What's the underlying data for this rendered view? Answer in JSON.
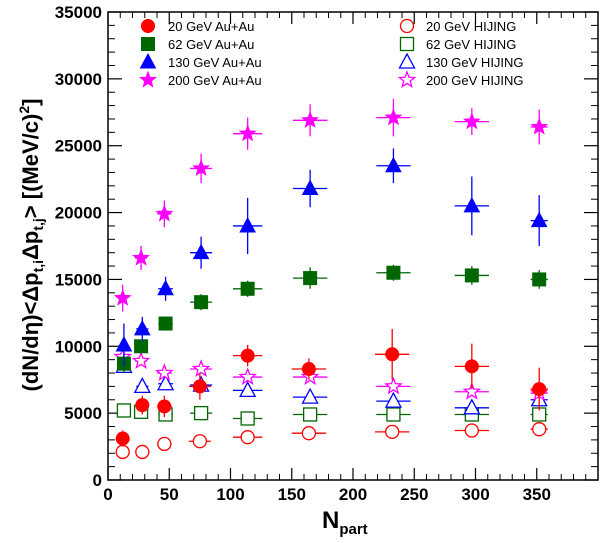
{
  "chart_data": {
    "type": "scatter",
    "title": "",
    "xlabel": "N",
    "xlabel_sub": "part",
    "ylabel": "(dN/dη)<Δpₜ,ᵢΔpₜ,ⱼ> [(MeV/c)²]",
    "ylabel_parts": {
      "main": "(dN/dη)<Δp",
      "sub1": "t,i",
      "mid": "Δp",
      "sub2": "t,j",
      "end": "> [(MeV/c)",
      "sup": "2",
      "close": "]"
    },
    "xlim": [
      0,
      400
    ],
    "ylim": [
      0,
      35000
    ],
    "x_ticks": [
      0,
      50,
      100,
      150,
      200,
      250,
      300,
      350
    ],
    "y_ticks": [
      0,
      5000,
      10000,
      15000,
      20000,
      25000,
      30000,
      35000
    ],
    "legend_left": [
      "20 GeV Au+Au",
      "62 GeV Au+Au",
      "130 GeV Au+Au",
      "200 GeV Au+Au"
    ],
    "legend_right": [
      "20 GeV HIJING",
      "62 GeV HIJING",
      "130 GeV HIJING",
      "200 GeV HIJING"
    ],
    "series": [
      {
        "name": "20 GeV Au+Au",
        "color": "#ff0000",
        "marker": "circle",
        "filled": true,
        "points": [
          {
            "x": 12,
            "y": 3100,
            "xerr": 3,
            "yerr": 600
          },
          {
            "x": 28,
            "y": 5600,
            "xerr": 5,
            "yerr": 700
          },
          {
            "x": 46,
            "y": 5500,
            "xerr": 6,
            "yerr": 800
          },
          {
            "x": 75,
            "y": 7000,
            "xerr": 9,
            "yerr": 1000
          },
          {
            "x": 114,
            "y": 9300,
            "xerr": 12,
            "yerr": 800
          },
          {
            "x": 164,
            "y": 8300,
            "xerr": 14,
            "yerr": 800
          },
          {
            "x": 232,
            "y": 9400,
            "xerr": 14,
            "yerr": 1900
          },
          {
            "x": 297,
            "y": 8500,
            "xerr": 14,
            "yerr": 1700
          },
          {
            "x": 352,
            "y": 6800,
            "xerr": 7,
            "yerr": 1600
          }
        ]
      },
      {
        "name": "62 GeV Au+Au",
        "color": "#006600",
        "marker": "square",
        "filled": true,
        "points": [
          {
            "x": 13,
            "y": 8700,
            "xerr": 3,
            "yerr": 700
          },
          {
            "x": 27,
            "y": 10000,
            "xerr": 5,
            "yerr": 500
          },
          {
            "x": 47,
            "y": 11700,
            "xerr": 6,
            "yerr": 500
          },
          {
            "x": 76,
            "y": 13300,
            "xerr": 9,
            "yerr": 600
          },
          {
            "x": 114,
            "y": 14300,
            "xerr": 12,
            "yerr": 600
          },
          {
            "x": 165,
            "y": 15100,
            "xerr": 14,
            "yerr": 800
          },
          {
            "x": 233,
            "y": 15500,
            "xerr": 14,
            "yerr": 600
          },
          {
            "x": 297,
            "y": 15300,
            "xerr": 14,
            "yerr": 700
          },
          {
            "x": 352,
            "y": 15000,
            "xerr": 7,
            "yerr": 700
          }
        ]
      },
      {
        "name": "130 GeV Au+Au",
        "color": "#0000ff",
        "marker": "triangle",
        "filled": true,
        "points": [
          {
            "x": 13,
            "y": 10100,
            "xerr": 3,
            "yerr": 1600
          },
          {
            "x": 28,
            "y": 11300,
            "xerr": 5,
            "yerr": 900
          },
          {
            "x": 47,
            "y": 14300,
            "xerr": 6,
            "yerr": 900
          },
          {
            "x": 76,
            "y": 17000,
            "xerr": 9,
            "yerr": 1200
          },
          {
            "x": 114,
            "y": 19000,
            "xerr": 12,
            "yerr": 2100
          },
          {
            "x": 165,
            "y": 21800,
            "xerr": 14,
            "yerr": 1400
          },
          {
            "x": 233,
            "y": 23500,
            "xerr": 14,
            "yerr": 1300
          },
          {
            "x": 297,
            "y": 20500,
            "xerr": 14,
            "yerr": 2200
          },
          {
            "x": 352,
            "y": 19400,
            "xerr": 7,
            "yerr": 1900
          }
        ]
      },
      {
        "name": "200 GeV Au+Au",
        "color": "#ff00ff",
        "marker": "star",
        "filled": true,
        "points": [
          {
            "x": 12,
            "y": 13600,
            "xerr": 3,
            "yerr": 1000
          },
          {
            "x": 27,
            "y": 16600,
            "xerr": 5,
            "yerr": 900
          },
          {
            "x": 46,
            "y": 19900,
            "xerr": 6,
            "yerr": 1000
          },
          {
            "x": 76,
            "y": 23300,
            "xerr": 9,
            "yerr": 1100
          },
          {
            "x": 114,
            "y": 25900,
            "xerr": 12,
            "yerr": 1200
          },
          {
            "x": 165,
            "y": 26900,
            "xerr": 14,
            "yerr": 1200
          },
          {
            "x": 233,
            "y": 27100,
            "xerr": 14,
            "yerr": 1400
          },
          {
            "x": 297,
            "y": 26800,
            "xerr": 14,
            "yerr": 1000
          },
          {
            "x": 352,
            "y": 26400,
            "xerr": 7,
            "yerr": 1300
          }
        ]
      },
      {
        "name": "20 GeV HIJING",
        "color": "#ff0000",
        "marker": "circle",
        "filled": false,
        "points": [
          {
            "x": 12,
            "y": 2100,
            "xerr": 3,
            "yerr": 0
          },
          {
            "x": 28,
            "y": 2100,
            "xerr": 5,
            "yerr": 0
          },
          {
            "x": 46,
            "y": 2700,
            "xerr": 6,
            "yerr": 0
          },
          {
            "x": 75,
            "y": 2900,
            "xerr": 9,
            "yerr": 0
          },
          {
            "x": 114,
            "y": 3200,
            "xerr": 12,
            "yerr": 0
          },
          {
            "x": 164,
            "y": 3500,
            "xerr": 14,
            "yerr": 0
          },
          {
            "x": 232,
            "y": 3600,
            "xerr": 14,
            "yerr": 0
          },
          {
            "x": 297,
            "y": 3700,
            "xerr": 14,
            "yerr": 0
          },
          {
            "x": 352,
            "y": 3800,
            "xerr": 7,
            "yerr": 0
          }
        ]
      },
      {
        "name": "62 GeV HIJING",
        "color": "#006600",
        "marker": "square",
        "filled": false,
        "points": [
          {
            "x": 13,
            "y": 5200,
            "xerr": 3,
            "yerr": 0
          },
          {
            "x": 27,
            "y": 5100,
            "xerr": 5,
            "yerr": 0
          },
          {
            "x": 47,
            "y": 4900,
            "xerr": 6,
            "yerr": 0
          },
          {
            "x": 76,
            "y": 5000,
            "xerr": 9,
            "yerr": 0
          },
          {
            "x": 114,
            "y": 4600,
            "xerr": 12,
            "yerr": 0
          },
          {
            "x": 165,
            "y": 4900,
            "xerr": 14,
            "yerr": 0
          },
          {
            "x": 233,
            "y": 4900,
            "xerr": 14,
            "yerr": 0
          },
          {
            "x": 297,
            "y": 4900,
            "xerr": 14,
            "yerr": 0
          },
          {
            "x": 352,
            "y": 4900,
            "xerr": 7,
            "yerr": 0
          }
        ]
      },
      {
        "name": "130 GeV HIJING",
        "color": "#0000ff",
        "marker": "triangle",
        "filled": false,
        "points": [
          {
            "x": 13,
            "y": 8500,
            "xerr": 3,
            "yerr": 0
          },
          {
            "x": 28,
            "y": 7000,
            "xerr": 5,
            "yerr": 0
          },
          {
            "x": 47,
            "y": 7200,
            "xerr": 6,
            "yerr": 0
          },
          {
            "x": 76,
            "y": 7100,
            "xerr": 9,
            "yerr": 0
          },
          {
            "x": 114,
            "y": 6700,
            "xerr": 12,
            "yerr": 0
          },
          {
            "x": 165,
            "y": 6200,
            "xerr": 14,
            "yerr": 0
          },
          {
            "x": 233,
            "y": 5900,
            "xerr": 14,
            "yerr": 0
          },
          {
            "x": 297,
            "y": 5400,
            "xerr": 14,
            "yerr": 0
          },
          {
            "x": 352,
            "y": 6000,
            "xerr": 7,
            "yerr": 0
          }
        ]
      },
      {
        "name": "200 GeV HIJING",
        "color": "#ff00ff",
        "marker": "star",
        "filled": false,
        "points": [
          {
            "x": 12,
            "y": 9200,
            "xerr": 3,
            "yerr": 0
          },
          {
            "x": 27,
            "y": 8900,
            "xerr": 5,
            "yerr": 0
          },
          {
            "x": 46,
            "y": 8000,
            "xerr": 6,
            "yerr": 0
          },
          {
            "x": 76,
            "y": 8300,
            "xerr": 9,
            "yerr": 0
          },
          {
            "x": 114,
            "y": 7700,
            "xerr": 12,
            "yerr": 0
          },
          {
            "x": 165,
            "y": 7700,
            "xerr": 14,
            "yerr": 0
          },
          {
            "x": 233,
            "y": 7000,
            "xerr": 14,
            "yerr": 0
          },
          {
            "x": 297,
            "y": 6600,
            "xerr": 14,
            "yerr": 0
          },
          {
            "x": 352,
            "y": 6500,
            "xerr": 7,
            "yerr": 0
          }
        ]
      }
    ],
    "grid": false,
    "legend_placement": "top, two columns"
  }
}
